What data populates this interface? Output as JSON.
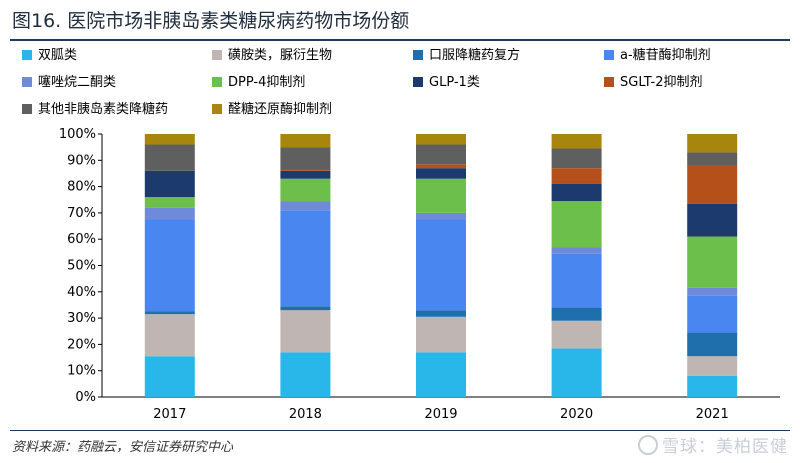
{
  "title": "图16. 医院市场非胰岛素类糖尿病药物市场份额",
  "source": "资料来源：药融云，安信证券研究中心",
  "watermark": "雪球：美柏医健",
  "chart_data": {
    "type": "bar",
    "stacked": true,
    "categories": [
      "2017",
      "2018",
      "2019",
      "2020",
      "2021"
    ],
    "ylim": [
      0,
      100
    ],
    "yticks": [
      "0%",
      "10%",
      "20%",
      "30%",
      "40%",
      "50%",
      "60%",
      "70%",
      "80%",
      "90%",
      "100%"
    ],
    "legend_position": "top",
    "grid": false,
    "series": [
      {
        "name": "双胍类",
        "color": "#29b6e8",
        "values": [
          15.5,
          17.0,
          17.0,
          18.5,
          8.0
        ]
      },
      {
        "name": "磺胺类，脲衍生物",
        "color": "#bfb6b4",
        "values": [
          16.0,
          16.0,
          13.5,
          10.5,
          7.5
        ]
      },
      {
        "name": "口服降糖药复方",
        "color": "#1f6fad",
        "values": [
          1.0,
          1.5,
          2.5,
          5.0,
          9.0
        ]
      },
      {
        "name": "a-糖苷酶抑制剂",
        "color": "#4a86f0",
        "values": [
          35.0,
          36.5,
          34.5,
          20.5,
          14.0
        ]
      },
      {
        "name": "噻唑烷二酮类",
        "color": "#6f8ad8",
        "values": [
          4.5,
          3.5,
          2.5,
          2.5,
          3.0
        ]
      },
      {
        "name": "DPP-4抑制剂",
        "color": "#6dbf4b",
        "values": [
          4.0,
          8.5,
          13.0,
          17.5,
          19.5
        ]
      },
      {
        "name": "GLP-1类",
        "color": "#1d3a6e",
        "values": [
          10.0,
          3.0,
          4.0,
          6.5,
          12.5
        ]
      },
      {
        "name": "SGLT-2抑制剂",
        "color": "#b5501b",
        "values": [
          0.0,
          0.5,
          1.5,
          6.0,
          14.5
        ]
      },
      {
        "name": "其他非胰岛素类降糖药",
        "color": "#5f5f5f",
        "values": [
          10.0,
          8.5,
          7.5,
          7.5,
          5.0
        ]
      },
      {
        "name": "醛糖还原酶抑制剂",
        "color": "#a8860e",
        "values": [
          4.0,
          5.0,
          4.0,
          5.5,
          7.0
        ]
      }
    ]
  }
}
